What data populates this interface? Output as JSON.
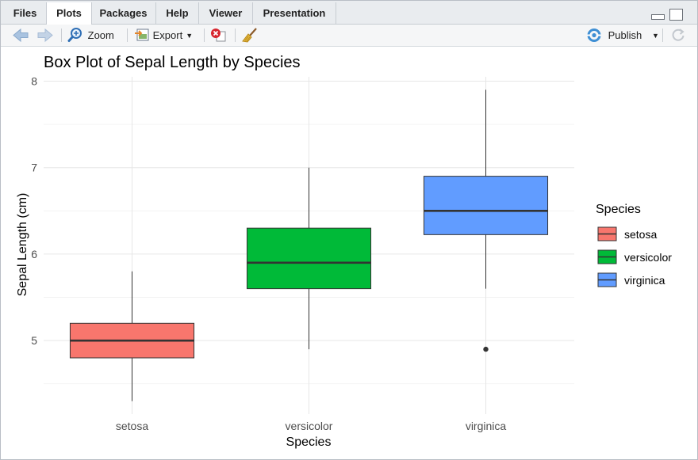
{
  "tabs": [
    {
      "label": "Files"
    },
    {
      "label": "Plots"
    },
    {
      "label": "Packages"
    },
    {
      "label": "Help"
    },
    {
      "label": "Viewer"
    },
    {
      "label": "Presentation"
    }
  ],
  "active_tab": "Plots",
  "toolbar": {
    "zoom_label": "Zoom",
    "export_label": "Export",
    "publish_label": "Publish"
  },
  "icons": [
    "back-arrow-icon",
    "forward-arrow-icon",
    "zoom-icon",
    "export-icon",
    "remove-plot-icon",
    "broom-icon",
    "publish-icon",
    "refresh-icon",
    "minimize-icon",
    "maximize-icon"
  ],
  "chart_data": {
    "type": "box",
    "title": "Box Plot of Sepal Length by Species",
    "xlabel": "Species",
    "ylabel": "Sepal Length (cm)",
    "ylim": [
      4.15,
      8.05
    ],
    "yticks": [
      5,
      6,
      7,
      8
    ],
    "grid": true,
    "legend": {
      "title": "Species",
      "placement": "right"
    },
    "categories": [
      "setosa",
      "versicolor",
      "virginica"
    ],
    "colors": [
      "#F8766D",
      "#00BA38",
      "#619CFF"
    ],
    "boxes": [
      {
        "name": "setosa",
        "min": 4.3,
        "q1": 4.8,
        "median": 5.0,
        "q3": 5.2,
        "max": 5.8,
        "outliers": []
      },
      {
        "name": "versicolor",
        "min": 4.9,
        "q1": 5.6,
        "median": 5.9,
        "q3": 6.3,
        "max": 7.0,
        "outliers": []
      },
      {
        "name": "virginica",
        "min": 5.6,
        "q1": 6.225,
        "median": 6.5,
        "q3": 6.9,
        "max": 7.9,
        "outliers": [
          4.9
        ]
      }
    ]
  }
}
